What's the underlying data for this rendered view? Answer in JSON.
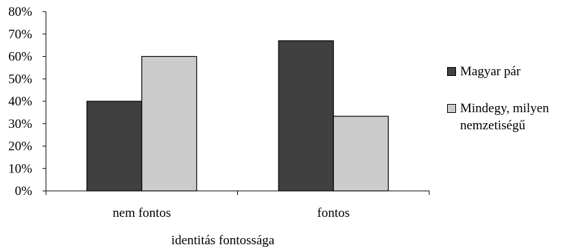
{
  "chart_data": {
    "type": "bar",
    "categories": [
      "nem fontos",
      "fontos"
    ],
    "series": [
      {
        "name": "Magyar pár",
        "values": [
          40,
          67
        ],
        "color": "#404040"
      },
      {
        "name": "Mindegy, milyen nemzetiségű",
        "values": [
          60,
          33.3
        ],
        "color": "#cccccc"
      }
    ],
    "title": "",
    "xlabel": "identitás fontossága",
    "ylabel": "",
    "ylim": [
      0,
      80
    ],
    "yticks": [
      "0%",
      "10%",
      "20%",
      "30%",
      "40%",
      "50%",
      "60%",
      "70%",
      "80%"
    ],
    "grid": false,
    "legend_position": "right"
  }
}
